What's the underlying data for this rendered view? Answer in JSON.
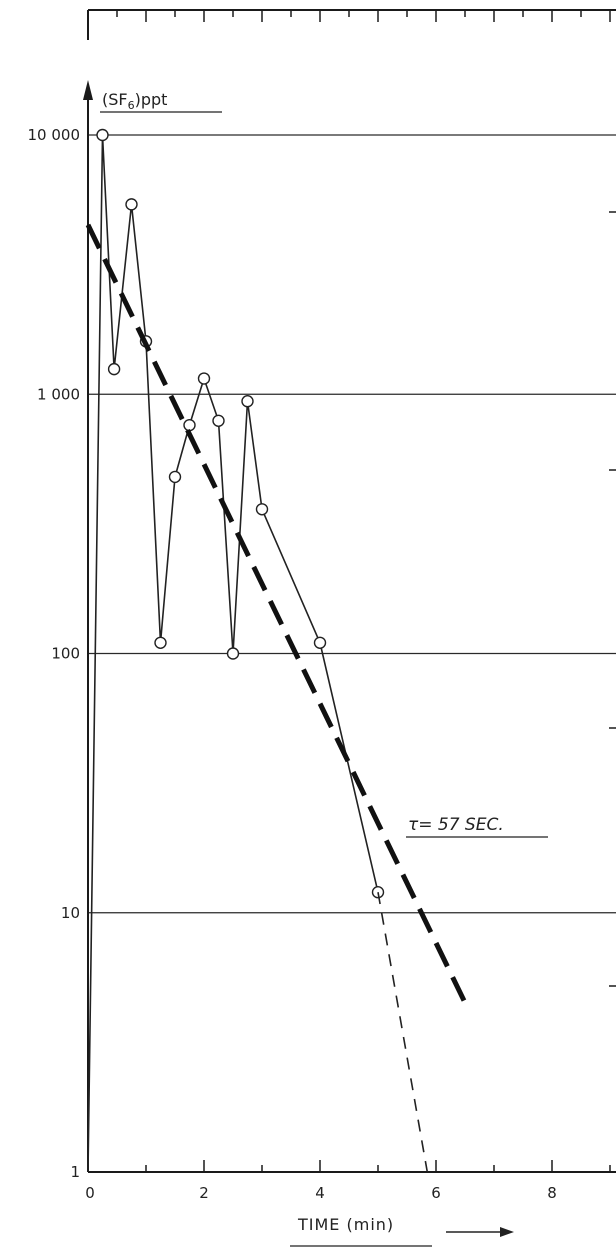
{
  "chart_data": {
    "type": "line",
    "ylabel_main": "(SF",
    "ylabel_sub": "6",
    "ylabel_rest": ")ppt",
    "xlabel": "TIME (min)",
    "annotation": "τ= 57 SEC.",
    "y_scale": "log",
    "ylim": [
      1,
      10000
    ],
    "xlim": [
      0,
      9
    ],
    "x_ticks": [
      0,
      2,
      4,
      6,
      8
    ],
    "x_tick_labels": [
      "0",
      "2",
      "4",
      "6",
      "8"
    ],
    "y_ticks": [
      1,
      10,
      100,
      1000,
      10000
    ],
    "y_tick_labels": [
      "1",
      "10",
      "100",
      "1 000",
      "10 000"
    ],
    "grid": "horizontal",
    "series": [
      {
        "style": "solid-with-circles",
        "x": [
          0,
          0.25,
          0.45,
          0.75,
          1.0,
          1.25,
          1.5,
          1.75,
          2.0,
          2.25,
          2.5,
          2.75,
          3.0,
          4.0,
          5.0
        ],
        "y": [
          1,
          10000,
          1250,
          5400,
          1600,
          110,
          480,
          760,
          1150,
          790,
          100,
          940,
          360,
          110,
          12
        ]
      },
      {
        "style": "thin-dashed-extrapolation",
        "x": [
          5.0,
          5.85
        ],
        "y": [
          12,
          1
        ]
      },
      {
        "style": "thick-dashed-fit",
        "x": [
          0,
          6.5
        ],
        "y": [
          4500,
          4.5
        ]
      }
    ]
  }
}
